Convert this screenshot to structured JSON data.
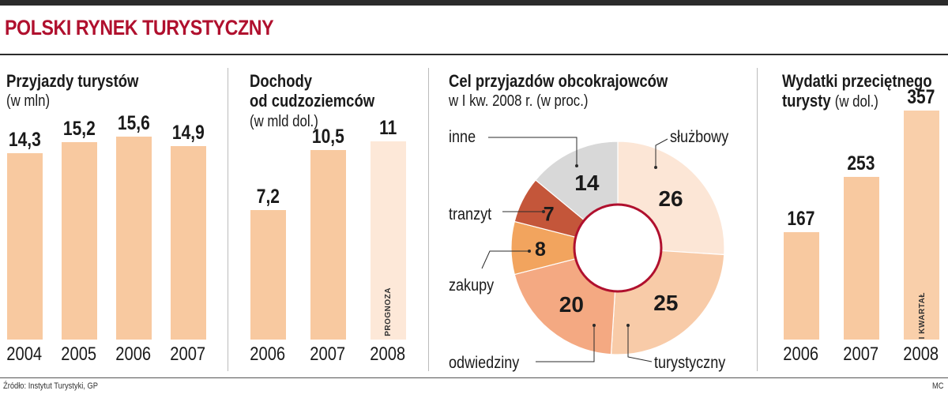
{
  "headline": "POLSKI RYNEK TURYSTYCZNY",
  "footer": {
    "source": "Źródło: Instytut Turystyki, GP",
    "credit": "MC"
  },
  "colors": {
    "headline": "#b0102e",
    "bar": "#f8c9a0",
    "bar_forecast": "#fde8d8",
    "bar_light": "#f9cfaa",
    "pie_sluzbowy": "#fce6d6",
    "pie_turystyczny": "#f8cba8",
    "pie_odwiedziny": "#f4a982",
    "pie_zakupy": "#f2a45e",
    "pie_tranzyt": "#c4563a",
    "pie_inne": "#d8d8d8"
  },
  "panels": {
    "arrivals": {
      "title": "Przyjazdy turystów",
      "subtitle": "(w mln)"
    },
    "income": {
      "title_line1": "Dochody",
      "title_line2": "od cudzoziemców",
      "subtitle": "(w mld dol.)",
      "note": "PROGNOZA"
    },
    "purpose": {
      "title": "Cel przyjazdów obcokrajowców",
      "subtitle": "w I kw. 2008 r. (w proc.)"
    },
    "spending": {
      "title_line1": "Wydatki przeciętnego",
      "title_line2a": "turysty",
      "title_line2b": "(w dol.)",
      "note": "I KWARTAŁ"
    }
  },
  "chart_data": [
    {
      "type": "bar",
      "title": "Przyjazdy turystów",
      "ylabel": "(w mln)",
      "categories": [
        "2004",
        "2005",
        "2006",
        "2007"
      ],
      "values": [
        14.3,
        15.2,
        15.6,
        14.9
      ],
      "value_labels": [
        "14,3",
        "15,2",
        "15,6",
        "14,9"
      ]
    },
    {
      "type": "bar",
      "title": "Dochody od cudzoziemców",
      "ylabel": "(w mld dol.)",
      "categories": [
        "2006",
        "2007",
        "2008"
      ],
      "values": [
        7.2,
        10.5,
        11
      ],
      "value_labels": [
        "7,2",
        "10,5",
        "11"
      ],
      "forecast_index": 2
    },
    {
      "type": "pie",
      "title": "Cel przyjazdów obcokrajowców",
      "subtitle": "w I kw. 2008 r. (w proc.)",
      "donut": true,
      "slices": [
        {
          "label": "służbowy",
          "value": 26,
          "color": "#fce6d6"
        },
        {
          "label": "turystyczny",
          "value": 25,
          "color": "#f8cba8"
        },
        {
          "label": "odwiedziny",
          "value": 20,
          "color": "#f4a982"
        },
        {
          "label": "zakupy",
          "value": 8,
          "color": "#f2a45e"
        },
        {
          "label": "tranzyt",
          "value": 7,
          "color": "#c4563a"
        },
        {
          "label": "inne",
          "value": 14,
          "color": "#d8d8d8"
        }
      ]
    },
    {
      "type": "bar",
      "title": "Wydatki przeciętnego turysty",
      "ylabel": "(w dol.)",
      "categories": [
        "2006",
        "2007",
        "2008"
      ],
      "values": [
        167,
        253,
        357
      ],
      "value_labels": [
        "167",
        "253",
        "357"
      ],
      "note_index": 2
    }
  ]
}
